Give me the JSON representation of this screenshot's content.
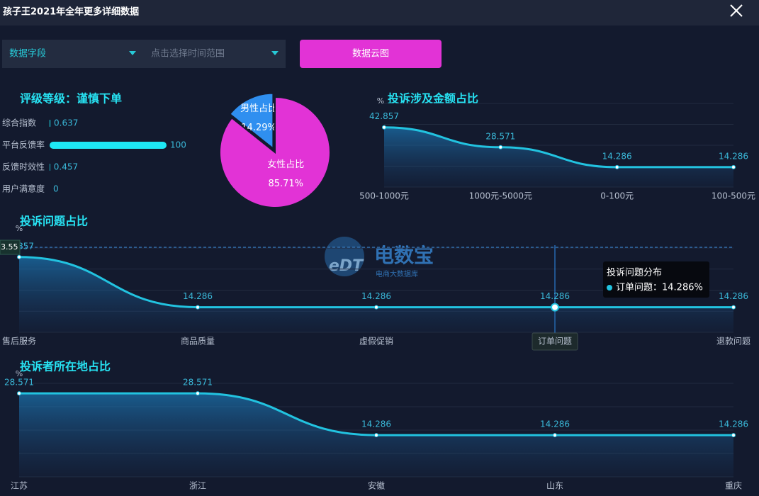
{
  "header": {
    "title": "孩子王2021年全年更多详细数据"
  },
  "controls": {
    "field_select": "数据字段",
    "time_select": "点击选择时间范围",
    "button": "数据云图"
  },
  "watermark": {
    "logo": "eDT",
    "name": "电数宝",
    "subtitle": "电商大数据库"
  },
  "chart_data": [
    {
      "type": "hbar",
      "title": "评级等级：谨慎下单",
      "categories": [
        "综合指数",
        "平台反馈率",
        "反馈时效性",
        "用户满意度"
      ],
      "values": [
        0.637,
        100,
        0.457,
        0
      ],
      "xlim": [
        0,
        100
      ],
      "color": "#1ee8f5"
    },
    {
      "type": "pie",
      "categories": [
        "男性占比",
        "女性占比"
      ],
      "values": [
        14.29,
        85.71
      ],
      "value_labels": [
        "14.29%",
        "85.71%"
      ],
      "colors": [
        "#2f8ff0",
        "#e233d6"
      ]
    },
    {
      "type": "line",
      "title": "投诉涉及金额占比",
      "y_unit": "%",
      "categories": [
        "500-1000元",
        "1000元-5000元",
        "0-100元",
        "100-500元"
      ],
      "values": [
        42.857,
        28.571,
        14.286,
        14.286
      ],
      "ylim": [
        0,
        60
      ],
      "color": "#22c3e0"
    },
    {
      "type": "line",
      "title": "投诉问题占比",
      "y_unit": "%",
      "categories": [
        "售后服务",
        "商品质量",
        "虚假促销",
        "订单问题",
        "退款问题"
      ],
      "values": [
        42.857,
        14.286,
        14.286,
        14.286,
        14.286
      ],
      "ylim": [
        0,
        48
      ],
      "color": "#22c3e0",
      "axis_pointer": {
        "label": "3.55"
      },
      "tooltip": {
        "title": "投诉问题分布",
        "text": "订单问题：14.286%"
      }
    },
    {
      "type": "line",
      "title": "投诉者所在地占比",
      "y_unit": "%",
      "categories": [
        "江苏",
        "浙江",
        "安徽",
        "山东",
        "重庆"
      ],
      "values": [
        28.571,
        28.571,
        14.286,
        14.286,
        14.286
      ],
      "ylim": [
        0,
        32
      ],
      "color": "#22c3e0"
    }
  ]
}
